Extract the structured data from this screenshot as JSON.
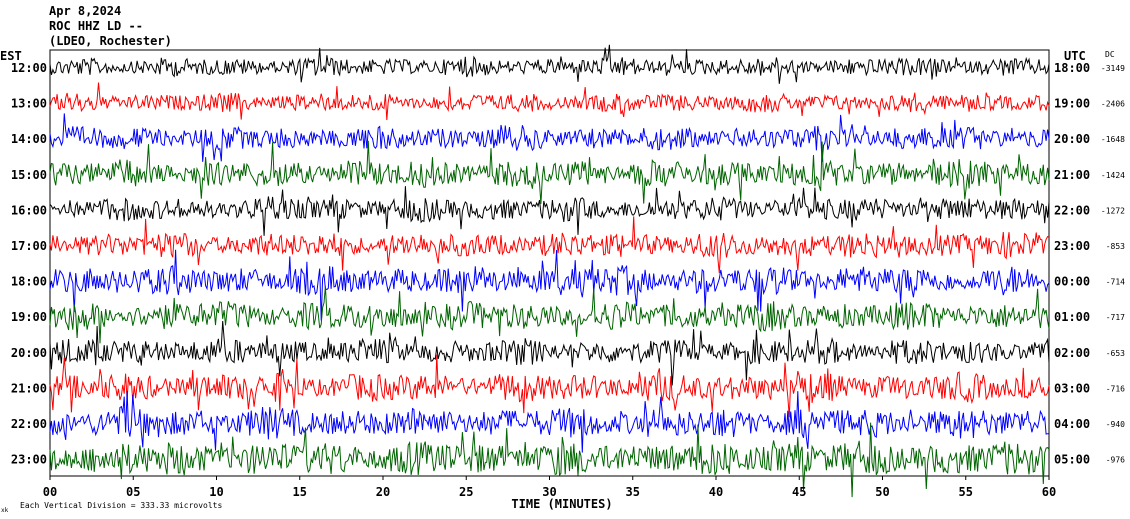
{
  "header": {
    "date": "Apr 8,2024",
    "station": "ROC HHZ LD --",
    "network": "(LDEO, Rochester)"
  },
  "labels": {
    "left_timezone": "EST",
    "right_timezone": "UTC",
    "dc_header": "DC",
    "xlabel": "TIME (MINUTES)",
    "scale_note": "Each Vertical Division = 333.33 microvolts",
    "corner_mark": "xk"
  },
  "chart_data": {
    "type": "line",
    "title": "",
    "xlabel": "TIME (MINUTES)",
    "ylabel": "",
    "xlim": [
      0,
      60
    ],
    "x_ticks": [
      "00",
      "05",
      "10",
      "15",
      "20",
      "25",
      "30",
      "35",
      "40",
      "45",
      "50",
      "55",
      "60"
    ],
    "trace_colors": [
      "#000000",
      "#ff0000",
      "#0000ff",
      "#006400"
    ],
    "rows": [
      {
        "est": "12:00",
        "utc": "18:00",
        "dc": "-3149",
        "amplitude": 0.55
      },
      {
        "est": "13:00",
        "utc": "19:00",
        "dc": "-2406",
        "amplitude": 0.55
      },
      {
        "est": "14:00",
        "utc": "20:00",
        "dc": "-1648",
        "amplitude": 0.7
      },
      {
        "est": "15:00",
        "utc": "21:00",
        "dc": "-1424",
        "amplitude": 0.8
      },
      {
        "est": "16:00",
        "utc": "22:00",
        "dc": "-1272",
        "amplitude": 0.7
      },
      {
        "est": "17:00",
        "utc": "23:00",
        "dc": "-853",
        "amplitude": 0.75
      },
      {
        "est": "18:00",
        "utc": "00:00",
        "dc": "-714",
        "amplitude": 0.85
      },
      {
        "est": "19:00",
        "utc": "01:00",
        "dc": "-717",
        "amplitude": 0.85
      },
      {
        "est": "20:00",
        "utc": "02:00",
        "dc": "-653",
        "amplitude": 0.75
      },
      {
        "est": "21:00",
        "utc": "03:00",
        "dc": "-716",
        "amplitude": 0.85
      },
      {
        "est": "22:00",
        "utc": "04:00",
        "dc": "-940",
        "amplitude": 0.9
      },
      {
        "est": "23:00",
        "utc": "05:00",
        "dc": "-976",
        "amplitude": 1.0
      }
    ]
  }
}
